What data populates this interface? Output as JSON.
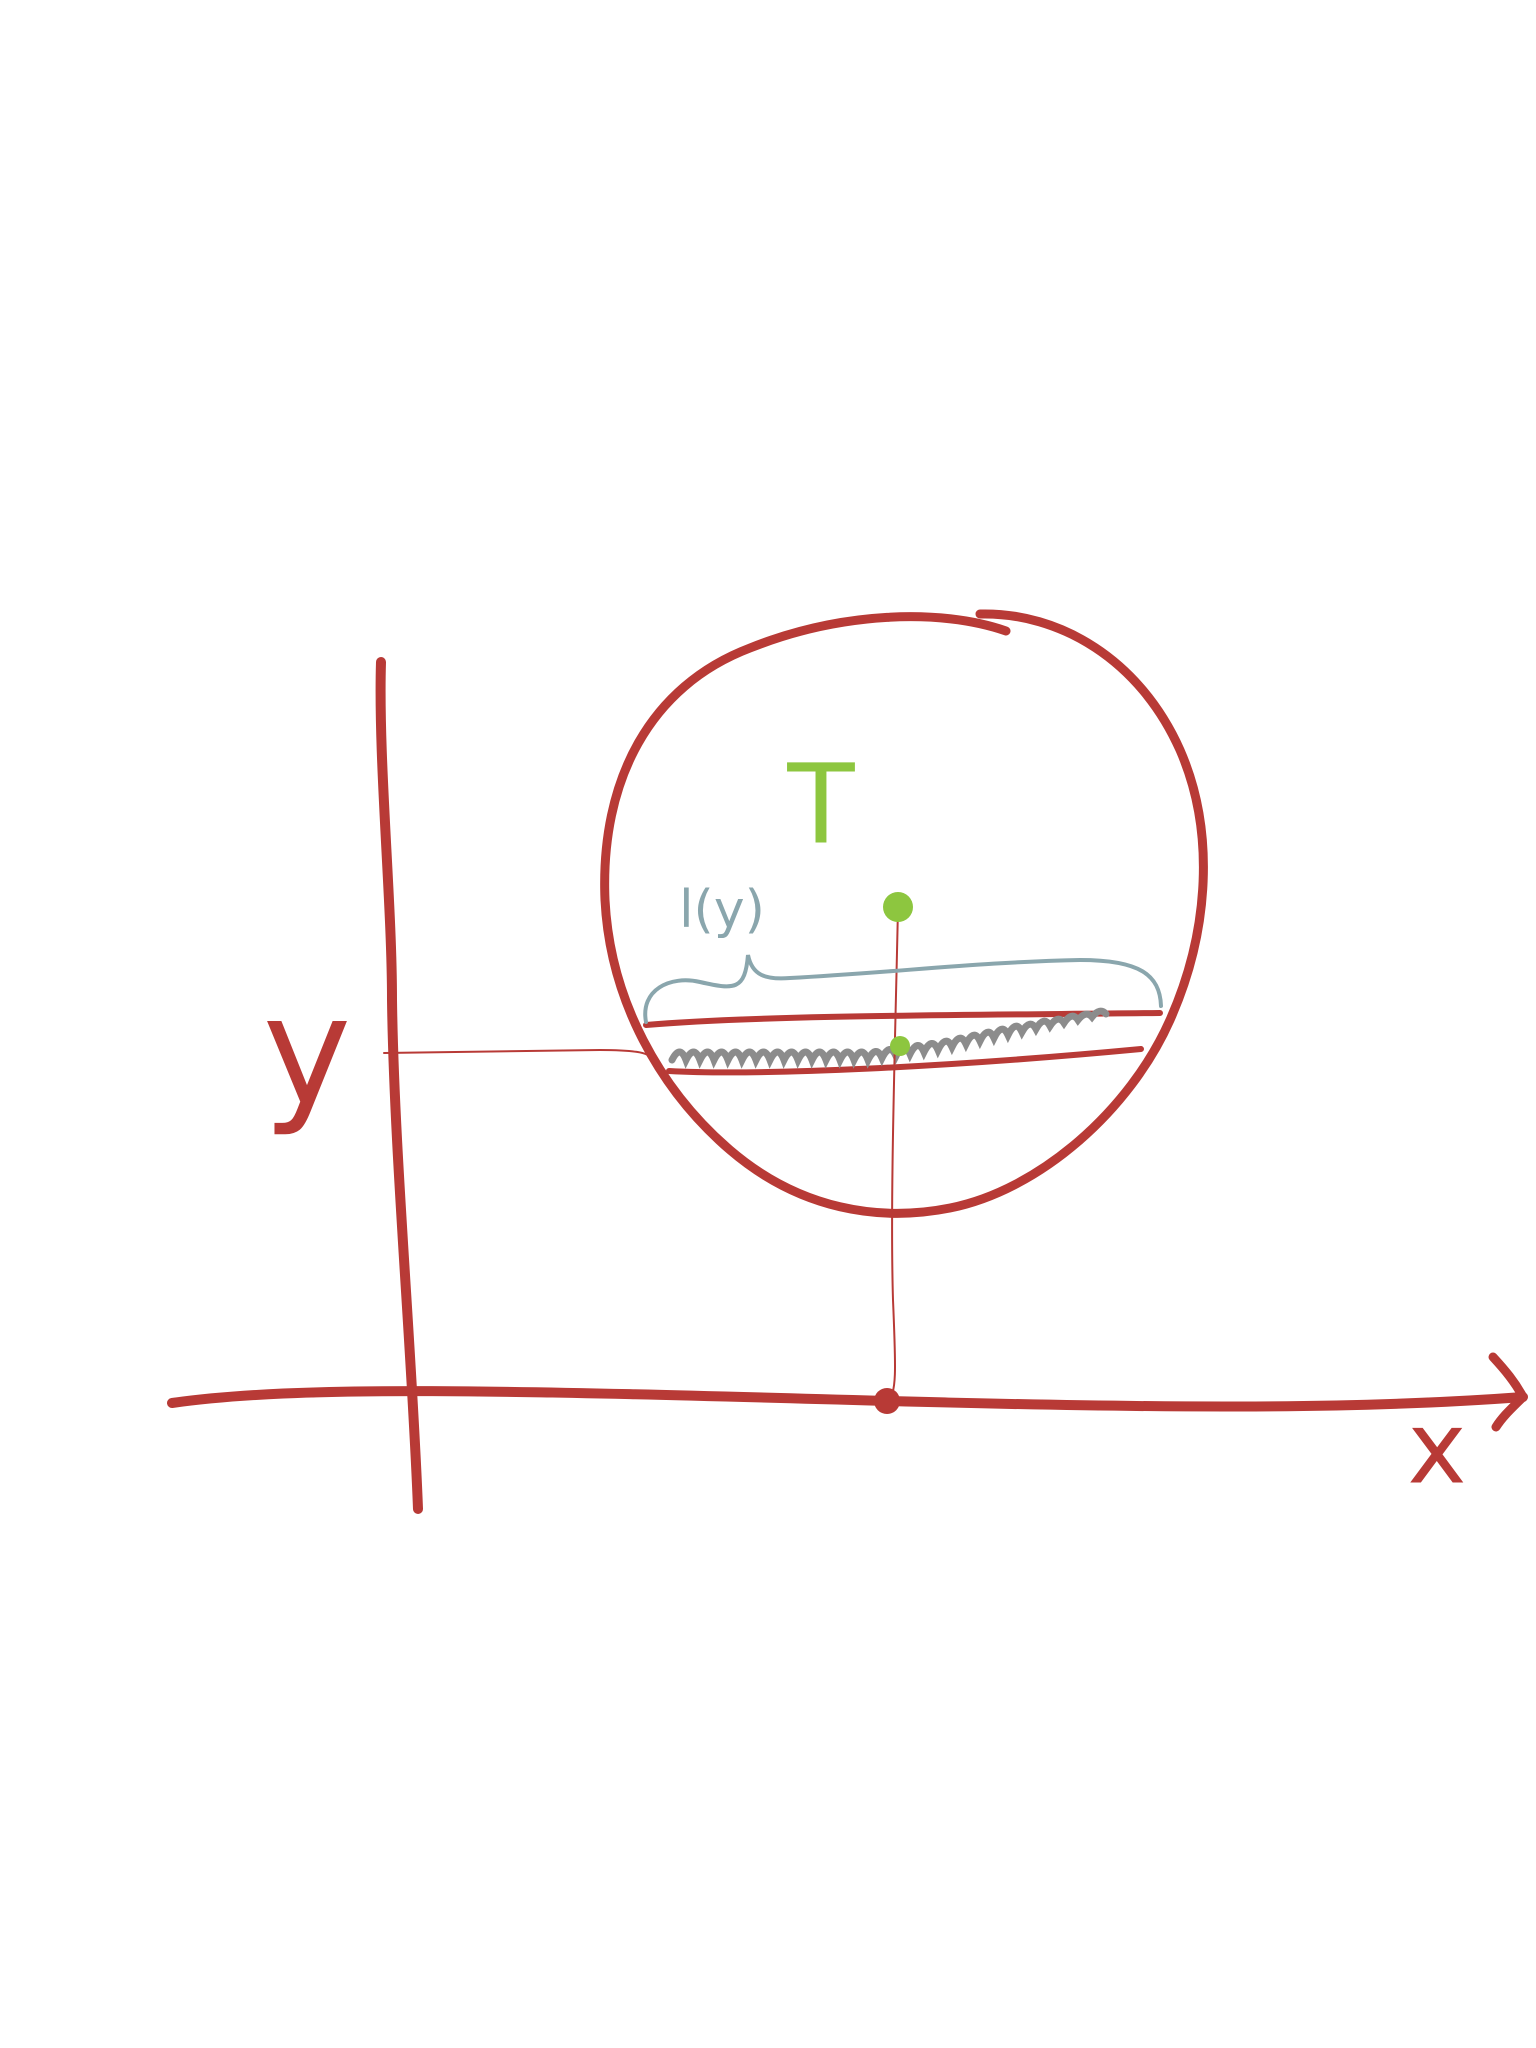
{
  "labels": {
    "region": "T",
    "length": "l(y)",
    "y_axis": "y",
    "x_axis": "x"
  }
}
